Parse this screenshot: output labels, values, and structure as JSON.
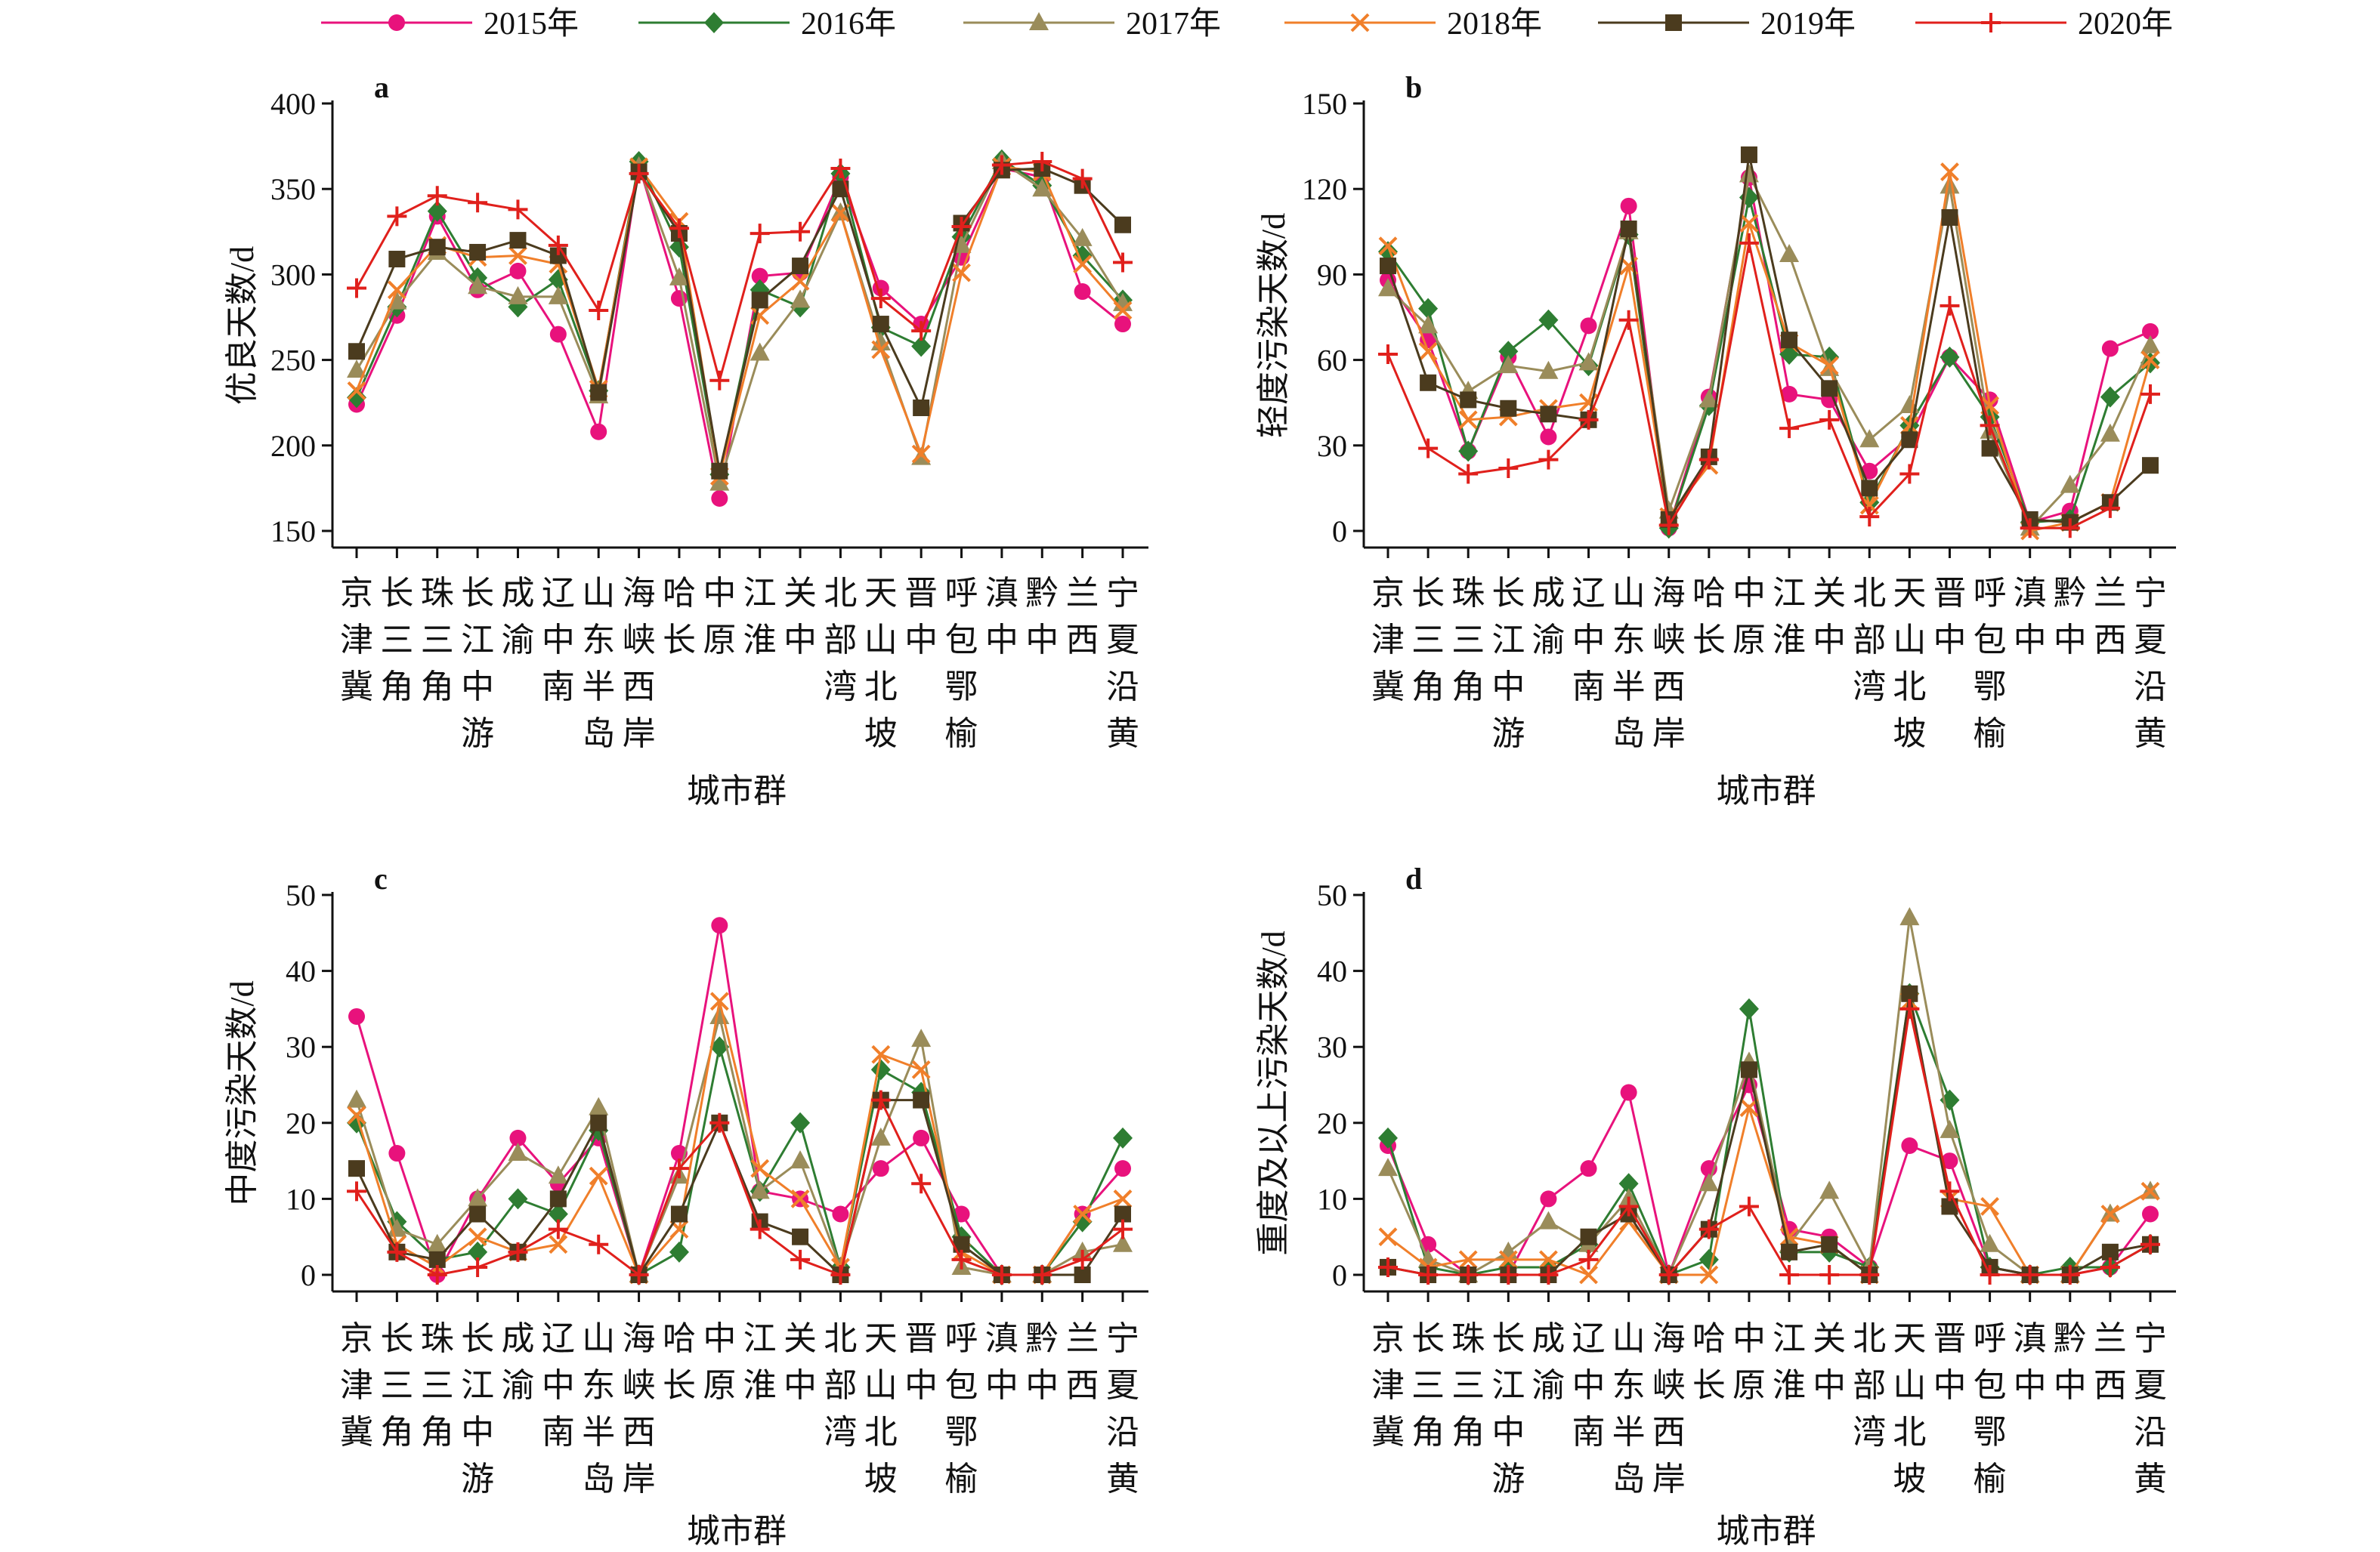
{
  "colors": {
    "2015年": "#e8127c",
    "2016年": "#2e7d32",
    "2017年": "#9a8c5a",
    "2018年": "#f07f2a",
    "2019年": "#4b3b1e",
    "2020年": "#e0201c"
  },
  "markers": {
    "2015年": "circle",
    "2016年": "diamond",
    "2017年": "triangle",
    "2018年": "x",
    "2019年": "square",
    "2020年": "plus"
  },
  "legend": [
    "2015年",
    "2016年",
    "2017年",
    "2018年",
    "2019年",
    "2020年"
  ],
  "categories": [
    "京津冀",
    "长三角",
    "珠三角",
    "长江中游",
    "成渝",
    "辽中南",
    "山东半岛",
    "海峡西岸",
    "哈长",
    "中原",
    "江淮",
    "关中",
    "北部湾",
    "天山北坡",
    "晋中",
    "呼包鄂榆",
    "滇中",
    "黔中",
    "兰西",
    "宁夏沿黄"
  ],
  "chart_data": [
    {
      "type": "line",
      "panel_label": "a",
      "ylabel": "优良天数/d",
      "xlabel": "城市群",
      "ylim": [
        150,
        400
      ],
      "yticks": [
        150,
        200,
        250,
        300,
        350,
        400
      ],
      "series": [
        {
          "name": "2015年",
          "values": [
            224,
            276,
            334,
            291,
            302,
            265,
            208,
            364,
            286,
            169,
            299,
            301,
            357,
            292,
            271,
            310,
            362,
            357,
            290,
            271
          ]
        },
        {
          "name": "2016年",
          "values": [
            228,
            281,
            337,
            298,
            281,
            297,
            232,
            366,
            316,
            183,
            291,
            281,
            359,
            269,
            258,
            322,
            367,
            352,
            311,
            285
          ]
        },
        {
          "name": "2017年",
          "values": [
            244,
            284,
            313,
            293,
            287,
            287,
            229,
            363,
            298,
            178,
            254,
            285,
            336,
            260,
            193,
            317,
            366,
            350,
            321,
            283
          ]
        },
        {
          "name": "2018年",
          "values": [
            232,
            291,
            317,
            310,
            311,
            306,
            233,
            363,
            331,
            182,
            276,
            296,
            336,
            256,
            195,
            301,
            363,
            360,
            306,
            279
          ]
        },
        {
          "name": "2019年",
          "values": [
            255,
            309,
            316,
            313,
            320,
            311,
            231,
            360,
            324,
            185,
            285,
            305,
            350,
            271,
            222,
            330,
            361,
            362,
            352,
            329
          ]
        },
        {
          "name": "2020年",
          "values": [
            292,
            334,
            346,
            342,
            338,
            317,
            279,
            359,
            327,
            238,
            324,
            325,
            362,
            286,
            267,
            328,
            364,
            366,
            356,
            307
          ]
        }
      ]
    },
    {
      "type": "line",
      "panel_label": "b",
      "ylabel": "轻度污染天数/d",
      "xlabel": "城市群",
      "ylim": [
        0,
        150
      ],
      "yticks": [
        0,
        30,
        60,
        90,
        120,
        150
      ],
      "series": [
        {
          "name": "2015年",
          "values": [
            88,
            67,
            28,
            61,
            33,
            72,
            114,
            1,
            47,
            124,
            48,
            46,
            21,
            33,
            61,
            46,
            3,
            7,
            64,
            70
          ]
        },
        {
          "name": "2016年",
          "values": [
            98,
            78,
            28,
            63,
            74,
            58,
            104,
            1,
            44,
            117,
            62,
            61,
            10,
            37,
            61,
            40,
            3,
            4,
            47,
            59
          ]
        },
        {
          "name": "2017年",
          "values": [
            85,
            72,
            49,
            58,
            56,
            59,
            105,
            7,
            46,
            125,
            97,
            57,
            32,
            44,
            121,
            35,
            1,
            16,
            34,
            65
          ]
        },
        {
          "name": "2018年",
          "values": [
            100,
            63,
            39,
            40,
            43,
            45,
            93,
            5,
            23,
            108,
            66,
            58,
            9,
            37,
            126,
            44,
            0,
            3,
            10,
            60
          ]
        },
        {
          "name": "2019年",
          "values": [
            93,
            52,
            46,
            43,
            41,
            39,
            106,
            4,
            26,
            132,
            67,
            50,
            15,
            32,
            110,
            29,
            4,
            3,
            10,
            23
          ]
        },
        {
          "name": "2020年",
          "values": [
            62,
            29,
            20,
            22,
            25,
            39,
            74,
            2,
            25,
            101,
            36,
            39,
            5,
            20,
            79,
            37,
            1,
            1,
            8,
            48
          ]
        }
      ]
    },
    {
      "type": "line",
      "panel_label": "c",
      "ylabel": "中度污染天数/d",
      "xlabel": "城市群",
      "ylim": [
        0,
        50
      ],
      "yticks": [
        0,
        10,
        20,
        30,
        40,
        50
      ],
      "series": [
        {
          "name": "2015年",
          "values": [
            34,
            16,
            0,
            10,
            18,
            12,
            18,
            0,
            16,
            46,
            11,
            10,
            8,
            14,
            18,
            8,
            0,
            0,
            8,
            14
          ]
        },
        {
          "name": "2016年",
          "values": [
            20,
            7,
            2,
            3,
            10,
            8,
            19,
            0,
            3,
            30,
            11,
            20,
            1,
            27,
            24,
            5,
            0,
            0,
            7,
            18
          ]
        },
        {
          "name": "2017年",
          "values": [
            23,
            6,
            4,
            10,
            16,
            13,
            22,
            0,
            13,
            34,
            11,
            15,
            1,
            18,
            31,
            1,
            0,
            0,
            3,
            4
          ]
        },
        {
          "name": "2018年",
          "values": [
            21,
            4,
            1,
            5,
            3,
            4,
            13,
            0,
            6,
            36,
            14,
            10,
            1,
            29,
            27,
            3,
            0,
            0,
            8,
            10
          ]
        },
        {
          "name": "2019年",
          "values": [
            14,
            3,
            2,
            8,
            3,
            10,
            20,
            0,
            8,
            20,
            7,
            5,
            0,
            23,
            23,
            4,
            0,
            0,
            0,
            8
          ]
        },
        {
          "name": "2020年",
          "values": [
            11,
            3,
            0,
            1,
            3,
            6,
            4,
            0,
            14,
            20,
            6,
            2,
            0,
            23,
            12,
            2,
            0,
            0,
            2,
            6
          ]
        }
      ]
    },
    {
      "type": "line",
      "panel_label": "d",
      "ylabel": "重度及以上污染天数/d",
      "xlabel": "城市群",
      "ylim": [
        0,
        50
      ],
      "yticks": [
        0,
        10,
        20,
        30,
        40,
        50
      ],
      "series": [
        {
          "name": "2015年",
          "values": [
            17,
            4,
            0,
            0,
            10,
            14,
            24,
            0,
            14,
            25,
            6,
            5,
            1,
            17,
            15,
            1,
            0,
            0,
            1,
            8
          ]
        },
        {
          "name": "2016年",
          "values": [
            18,
            1,
            0,
            1,
            1,
            4,
            12,
            0,
            2,
            35,
            3,
            3,
            1,
            37,
            23,
            1,
            0,
            1,
            1,
            4
          ]
        },
        {
          "name": "2017年",
          "values": [
            14,
            2,
            0,
            3,
            7,
            4,
            10,
            0,
            12,
            28,
            4,
            11,
            1,
            47,
            19,
            4,
            0,
            0,
            8,
            11
          ]
        },
        {
          "name": "2018年",
          "values": [
            5,
            1,
            2,
            2,
            2,
            0,
            7,
            0,
            0,
            22,
            5,
            4,
            0,
            36,
            10,
            9,
            0,
            0,
            8,
            11
          ]
        },
        {
          "name": "2019年",
          "values": [
            1,
            0,
            0,
            0,
            0,
            5,
            8,
            0,
            6,
            27,
            3,
            4,
            0,
            37,
            9,
            1,
            0,
            0,
            3,
            4
          ]
        },
        {
          "name": "2020年",
          "values": [
            1,
            0,
            0,
            0,
            0,
            2,
            9,
            0,
            6,
            9,
            0,
            0,
            0,
            35,
            11,
            0,
            0,
            0,
            1,
            4
          ]
        }
      ]
    }
  ]
}
